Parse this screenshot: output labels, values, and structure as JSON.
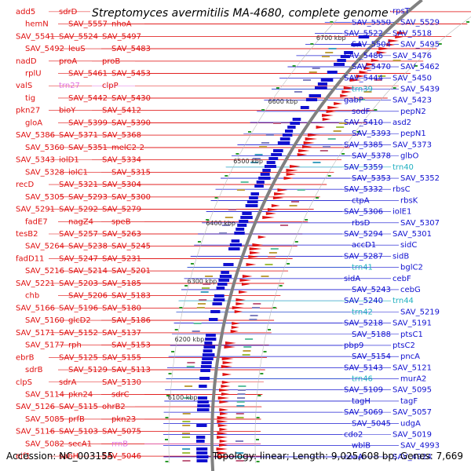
{
  "title": "Streptomyces avermitilis MA-4680, complete genome",
  "footer": {
    "accession": "Accession: NC_003155",
    "summary": "Topology: linear; Length: 9,025,608 bp; Genes: 7,669"
  },
  "colors": {
    "plus_strand": "#e01010",
    "minus_strand": "#1010d0",
    "rna": "#20b0c0",
    "pseudo": "#e070e0",
    "axis": "#808080",
    "tick": "#202020"
  },
  "kbp_marks": [
    "6700 kbp",
    "6600 kbp",
    "6500 kbp",
    "6400 kbp",
    "6300 kbp",
    "6200 kbp",
    "6100 kbp"
  ],
  "left_labels": [
    {
      "text": "add5",
      "color": "#e01010"
    },
    {
      "text": "sdrD",
      "color": "#e01010"
    },
    {
      "text": "hrcA",
      "color": "#e01010"
    },
    {
      "text": "hemN",
      "color": "#e01010"
    },
    {
      "text": "SAV_5557",
      "color": "#e01010"
    },
    {
      "text": "nhoA",
      "color": "#e01010"
    },
    {
      "text": "SAV_5541",
      "color": "#e01010"
    },
    {
      "text": "SAV_5524",
      "color": "#e01010"
    },
    {
      "text": "SAV_5497",
      "color": "#e01010"
    },
    {
      "text": "SAV_5492",
      "color": "#e01010"
    },
    {
      "text": "leuS",
      "color": "#e01010"
    },
    {
      "text": "SAV_5483",
      "color": "#e01010"
    },
    {
      "text": "nadD",
      "color": "#e01010"
    },
    {
      "text": "proA",
      "color": "#e01010"
    },
    {
      "text": "proB",
      "color": "#e01010"
    },
    {
      "text": "rplU",
      "color": "#e01010"
    },
    {
      "text": "SAV_5461",
      "color": "#e01010"
    },
    {
      "text": "SAV_5453",
      "color": "#e01010"
    },
    {
      "text": "valS",
      "color": "#e01010"
    },
    {
      "text": "trn27",
      "color": "#e070e0"
    },
    {
      "text": "clpP",
      "color": "#e01010"
    },
    {
      "text": "tig",
      "color": "#e01010"
    },
    {
      "text": "SAV_5442",
      "color": "#e01010"
    },
    {
      "text": "SAV_5430",
      "color": "#e01010"
    },
    {
      "text": "pkn27",
      "color": "#e01010"
    },
    {
      "text": "bioY",
      "color": "#e01010"
    },
    {
      "text": "SAV_5412",
      "color": "#e01010"
    },
    {
      "text": "gloA",
      "color": "#e01010"
    },
    {
      "text": "SAV_5399",
      "color": "#e01010"
    },
    {
      "text": "SAV_5390",
      "color": "#e01010"
    },
    {
      "text": "SAV_5386",
      "color": "#e01010"
    },
    {
      "text": "SAV_5371",
      "color": "#e01010"
    },
    {
      "text": "SAV_5368",
      "color": "#e01010"
    },
    {
      "text": "SAV_5360",
      "color": "#e01010"
    },
    {
      "text": "SAV_5351",
      "color": "#e01010"
    },
    {
      "text": "melC2-2",
      "color": "#e01010"
    },
    {
      "text": "SAV_5343",
      "color": "#e01010"
    },
    {
      "text": "iolD1",
      "color": "#e01010"
    },
    {
      "text": "SAV_5334",
      "color": "#e01010"
    },
    {
      "text": "SAV_5328",
      "color": "#e01010"
    },
    {
      "text": "iolC1",
      "color": "#e01010"
    },
    {
      "text": "SAV_5315",
      "color": "#e01010"
    },
    {
      "text": "recD",
      "color": "#e01010"
    },
    {
      "text": "SAV_5321",
      "color": "#e01010"
    },
    {
      "text": "SAV_5304",
      "color": "#e01010"
    },
    {
      "text": "SAV_5305",
      "color": "#e01010"
    },
    {
      "text": "SAV_5293",
      "color": "#e01010"
    },
    {
      "text": "SAV_5300",
      "color": "#e01010"
    },
    {
      "text": "SAV_5291",
      "color": "#e01010"
    },
    {
      "text": "SAV_5292",
      "color": "#e01010"
    },
    {
      "text": "SAV_5279",
      "color": "#e01010"
    },
    {
      "text": "fadE7",
      "color": "#e01010"
    },
    {
      "text": "nagZ4",
      "color": "#e01010"
    },
    {
      "text": "speB",
      "color": "#e01010"
    },
    {
      "text": "tesB2",
      "color": "#e01010"
    },
    {
      "text": "SAV_5257",
      "color": "#e01010"
    },
    {
      "text": "SAV_5263",
      "color": "#e01010"
    },
    {
      "text": "SAV_5264",
      "color": "#e01010"
    },
    {
      "text": "SAV_5238",
      "color": "#e01010"
    },
    {
      "text": "SAV_5245",
      "color": "#e01010"
    },
    {
      "text": "fadD11",
      "color": "#e01010"
    },
    {
      "text": "SAV_5247",
      "color": "#e01010"
    },
    {
      "text": "SAV_5231",
      "color": "#e01010"
    },
    {
      "text": "SAV_5216",
      "color": "#e01010"
    },
    {
      "text": "SAV_5214",
      "color": "#e01010"
    },
    {
      "text": "SAV_5201",
      "color": "#e01010"
    },
    {
      "text": "SAV_5221",
      "color": "#e01010"
    },
    {
      "text": "SAV_5203",
      "color": "#e01010"
    },
    {
      "text": "SAV_5185",
      "color": "#e01010"
    },
    {
      "text": "chb",
      "color": "#e01010"
    },
    {
      "text": "SAV_5206",
      "color": "#e01010"
    },
    {
      "text": "SAV_5183",
      "color": "#e01010"
    },
    {
      "text": "SAV_5166",
      "color": "#e01010"
    },
    {
      "text": "SAV_5196",
      "color": "#e01010"
    },
    {
      "text": "SAV_5180",
      "color": "#e01010"
    },
    {
      "text": "SAV_5160",
      "color": "#e01010"
    },
    {
      "text": "glcD2",
      "color": "#e01010"
    },
    {
      "text": "SAV_5186",
      "color": "#e01010"
    },
    {
      "text": "SAV_5171",
      "color": "#e01010"
    },
    {
      "text": "SAV_5152",
      "color": "#e01010"
    },
    {
      "text": "SAV_5137",
      "color": "#e01010"
    },
    {
      "text": "SAV_5177",
      "color": "#e01010"
    },
    {
      "text": "rph",
      "color": "#e01010"
    },
    {
      "text": "SAV_5153",
      "color": "#e01010"
    },
    {
      "text": "ebrB",
      "color": "#e01010"
    },
    {
      "text": "SAV_5125",
      "color": "#e01010"
    },
    {
      "text": "SAV_5155",
      "color": "#e01010"
    },
    {
      "text": "sdrB",
      "color": "#e01010"
    },
    {
      "text": "SAV_5129",
      "color": "#e01010"
    },
    {
      "text": "SAV_5113",
      "color": "#e01010"
    },
    {
      "text": "clpS",
      "color": "#e01010"
    },
    {
      "text": "sdrA",
      "color": "#e01010"
    },
    {
      "text": "SAV_5130",
      "color": "#e01010"
    },
    {
      "text": "SAV_5114",
      "color": "#e01010"
    },
    {
      "text": "pkn24",
      "color": "#e01010"
    },
    {
      "text": "sdrC",
      "color": "#e01010"
    },
    {
      "text": "SAV_5126",
      "color": "#e01010"
    },
    {
      "text": "SAV_5115",
      "color": "#e01010"
    },
    {
      "text": "ohrB2",
      "color": "#e01010"
    },
    {
      "text": "SAV_5085",
      "color": "#e01010"
    },
    {
      "text": "prfB",
      "color": "#e01010"
    },
    {
      "text": "pkn23",
      "color": "#e01010"
    },
    {
      "text": "SAV_5116",
      "color": "#e01010"
    },
    {
      "text": "SAV_5103",
      "color": "#e01010"
    },
    {
      "text": "SAV_5075",
      "color": "#e01010"
    },
    {
      "text": "SAV_5082",
      "color": "#e01010"
    },
    {
      "text": "secA1",
      "color": "#e01010"
    },
    {
      "text": "rrnB",
      "color": "#e070e0"
    },
    {
      "text": "eif1",
      "color": "#e01010"
    },
    {
      "text": "sahH",
      "color": "#e01010"
    },
    {
      "text": "SAV_5046",
      "color": "#e01010"
    }
  ],
  "right_labels": [
    {
      "text": "SAV_5564",
      "color": "#1010d0"
    },
    {
      "text": "rpsT",
      "color": "#1010d0"
    },
    {
      "text": "SAV_5550",
      "color": "#1010d0"
    },
    {
      "text": "SAV_5529",
      "color": "#1010d0"
    },
    {
      "text": "SAV_5522",
      "color": "#1010d0"
    },
    {
      "text": "SAV_5518",
      "color": "#1010d0"
    },
    {
      "text": "SAV_5504",
      "color": "#1010d0"
    },
    {
      "text": "SAV_5495",
      "color": "#1010d0"
    },
    {
      "text": "SAV_5486",
      "color": "#1010d0"
    },
    {
      "text": "SAV_5476",
      "color": "#1010d0"
    },
    {
      "text": "SAV_5470",
      "color": "#1010d0"
    },
    {
      "text": "SAV_5462",
      "color": "#1010d0"
    },
    {
      "text": "SAV_5444",
      "color": "#1010d0"
    },
    {
      "text": "SAV_5450",
      "color": "#1010d0"
    },
    {
      "text": "trn39",
      "color": "#20b0c0"
    },
    {
      "text": "SAV_5439",
      "color": "#1010d0"
    },
    {
      "text": "gabP",
      "color": "#1010d0"
    },
    {
      "text": "SAV_5423",
      "color": "#1010d0"
    },
    {
      "text": "sodF",
      "color": "#1010d0"
    },
    {
      "text": "pepN2",
      "color": "#1010d0"
    },
    {
      "text": "SAV_5410",
      "color": "#1010d0"
    },
    {
      "text": "asd2",
      "color": "#1010d0"
    },
    {
      "text": "SAV_5393",
      "color": "#1010d0"
    },
    {
      "text": "pepN1",
      "color": "#1010d0"
    },
    {
      "text": "SAV_5385",
      "color": "#1010d0"
    },
    {
      "text": "SAV_5373",
      "color": "#1010d0"
    },
    {
      "text": "SAV_5378",
      "color": "#1010d0"
    },
    {
      "text": "glbO",
      "color": "#1010d0"
    },
    {
      "text": "SAV_5359",
      "color": "#1010d0"
    },
    {
      "text": "trn40",
      "color": "#20b0c0"
    },
    {
      "text": "SAV_5353",
      "color": "#1010d0"
    },
    {
      "text": "SAV_5352",
      "color": "#1010d0"
    },
    {
      "text": "SAV_5332",
      "color": "#1010d0"
    },
    {
      "text": "rbsC",
      "color": "#1010d0"
    },
    {
      "text": "ctpA",
      "color": "#1010d0"
    },
    {
      "text": "rbsK",
      "color": "#1010d0"
    },
    {
      "text": "SAV_5306",
      "color": "#1010d0"
    },
    {
      "text": "iolE1",
      "color": "#1010d0"
    },
    {
      "text": "rbsD",
      "color": "#1010d0"
    },
    {
      "text": "SAV_5307",
      "color": "#1010d0"
    },
    {
      "text": "SAV_5294",
      "color": "#1010d0"
    },
    {
      "text": "SAV_5301",
      "color": "#1010d0"
    },
    {
      "text": "accD1",
      "color": "#1010d0"
    },
    {
      "text": "sidC",
      "color": "#1010d0"
    },
    {
      "text": "SAV_5287",
      "color": "#1010d0"
    },
    {
      "text": "sidB",
      "color": "#1010d0"
    },
    {
      "text": "trn41",
      "color": "#20b0c0"
    },
    {
      "text": "bglC2",
      "color": "#1010d0"
    },
    {
      "text": "sidA",
      "color": "#1010d0"
    },
    {
      "text": "cebF",
      "color": "#1010d0"
    },
    {
      "text": "SAV_5243",
      "color": "#1010d0"
    },
    {
      "text": "cebG",
      "color": "#1010d0"
    },
    {
      "text": "SAV_5240",
      "color": "#1010d0"
    },
    {
      "text": "trn44",
      "color": "#20b0c0"
    },
    {
      "text": "trn42",
      "color": "#20b0c0"
    },
    {
      "text": "SAV_5219",
      "color": "#1010d0"
    },
    {
      "text": "SAV_5218",
      "color": "#1010d0"
    },
    {
      "text": "SAV_5191",
      "color": "#1010d0"
    },
    {
      "text": "SAV_5188",
      "color": "#1010d0"
    },
    {
      "text": "ptsC1",
      "color": "#1010d0"
    },
    {
      "text": "pbp9",
      "color": "#1010d0"
    },
    {
      "text": "ptsC2",
      "color": "#1010d0"
    },
    {
      "text": "SAV_5154",
      "color": "#1010d0"
    },
    {
      "text": "pncA",
      "color": "#1010d0"
    },
    {
      "text": "SAV_5143",
      "color": "#1010d0"
    },
    {
      "text": "SAV_5121",
      "color": "#1010d0"
    },
    {
      "text": "trn46",
      "color": "#20b0c0"
    },
    {
      "text": "murA2",
      "color": "#1010d0"
    },
    {
      "text": "SAV_5109",
      "color": "#1010d0"
    },
    {
      "text": "SAV_5095",
      "color": "#1010d0"
    },
    {
      "text": "tagH",
      "color": "#1010d0"
    },
    {
      "text": "tagF",
      "color": "#1010d0"
    },
    {
      "text": "SAV_5069",
      "color": "#1010d0"
    },
    {
      "text": "SAV_5057",
      "color": "#1010d0"
    },
    {
      "text": "SAV_5045",
      "color": "#1010d0"
    },
    {
      "text": "udgA",
      "color": "#1010d0"
    },
    {
      "text": "cdo2",
      "color": "#1010d0"
    },
    {
      "text": "SAV_5019",
      "color": "#1010d0"
    },
    {
      "text": "wblB",
      "color": "#1010d0"
    },
    {
      "text": "SAV_4993",
      "color": "#1010d0"
    },
    {
      "text": "coaA",
      "color": "#1010d0"
    },
    {
      "text": "SAV_4924",
      "color": "#1010d0"
    }
  ]
}
